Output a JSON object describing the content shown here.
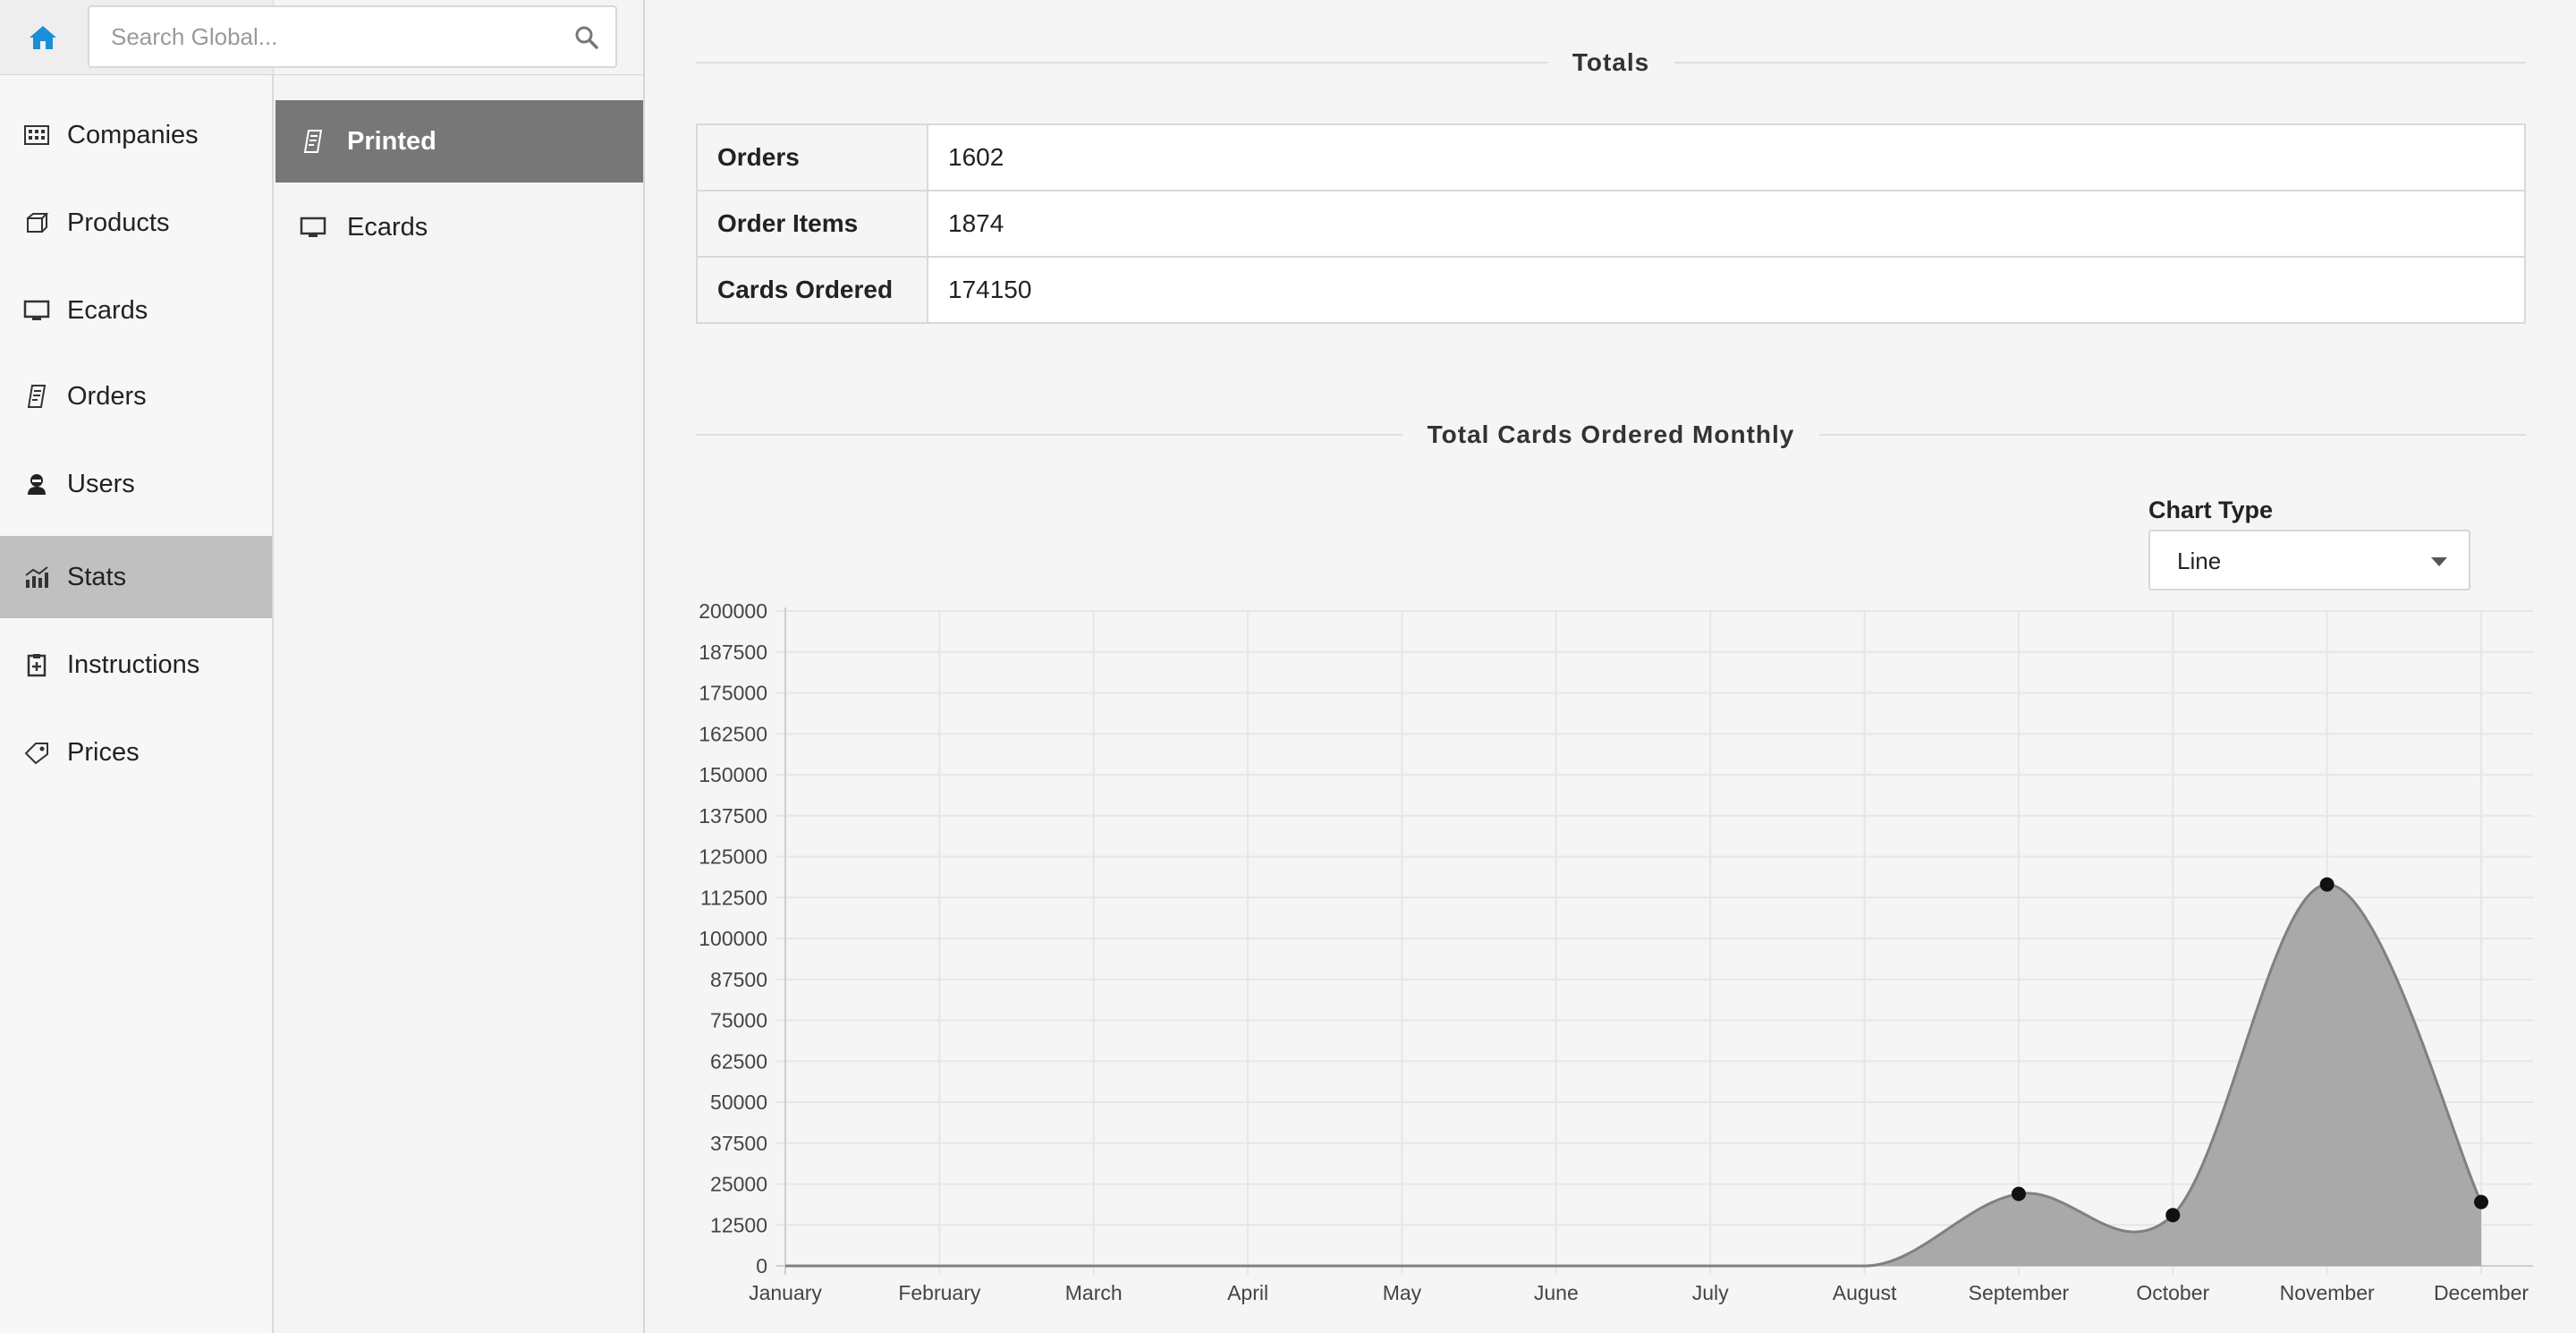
{
  "search": {
    "placeholder": "Search Global..."
  },
  "sidebar": {
    "items": [
      {
        "label": "Companies",
        "icon": "building-icon"
      },
      {
        "label": "Products",
        "icon": "box-icon"
      },
      {
        "label": "Ecards",
        "icon": "monitor-icon"
      },
      {
        "label": "Orders",
        "icon": "receipt-icon"
      },
      {
        "label": "Users",
        "icon": "user-icon"
      },
      {
        "label": "Stats",
        "icon": "chart-icon",
        "active": true
      },
      {
        "label": "Instructions",
        "icon": "clipboard-icon"
      },
      {
        "label": "Prices",
        "icon": "tag-icon"
      }
    ]
  },
  "subnav": {
    "items": [
      {
        "label": "Printed",
        "icon": "receipt-icon",
        "active": true
      },
      {
        "label": "Ecards",
        "icon": "monitor-icon"
      }
    ]
  },
  "totals": {
    "title": "Totals",
    "rows": [
      {
        "label": "Orders",
        "value": "1602"
      },
      {
        "label": "Order Items",
        "value": "1874"
      },
      {
        "label": "Cards Ordered",
        "value": "174150"
      }
    ]
  },
  "monthly": {
    "title": "Total Cards Ordered Monthly",
    "chart_type_label": "Chart Type",
    "chart_type_value": "Line"
  },
  "colors": {
    "accent": "#1a8fd8",
    "active_sub": "#777777",
    "active_side": "#c0c0c0",
    "area_fill": "#a9a9a9"
  },
  "chart_data": {
    "type": "area",
    "categories": [
      "January",
      "February",
      "March",
      "April",
      "May",
      "June",
      "July",
      "August",
      "September",
      "October",
      "November",
      "December"
    ],
    "series": [
      {
        "values": [
          0,
          0,
          0,
          0,
          0,
          0,
          0,
          0,
          22000,
          15500,
          116500,
          19500
        ]
      }
    ],
    "ylim": [
      0,
      200000
    ],
    "yticks": [
      0,
      12500,
      25000,
      37500,
      50000,
      62500,
      75000,
      87500,
      100000,
      112500,
      125000,
      137500,
      150000,
      162500,
      175000,
      187500,
      200000
    ],
    "grid": true,
    "legend": "none"
  }
}
